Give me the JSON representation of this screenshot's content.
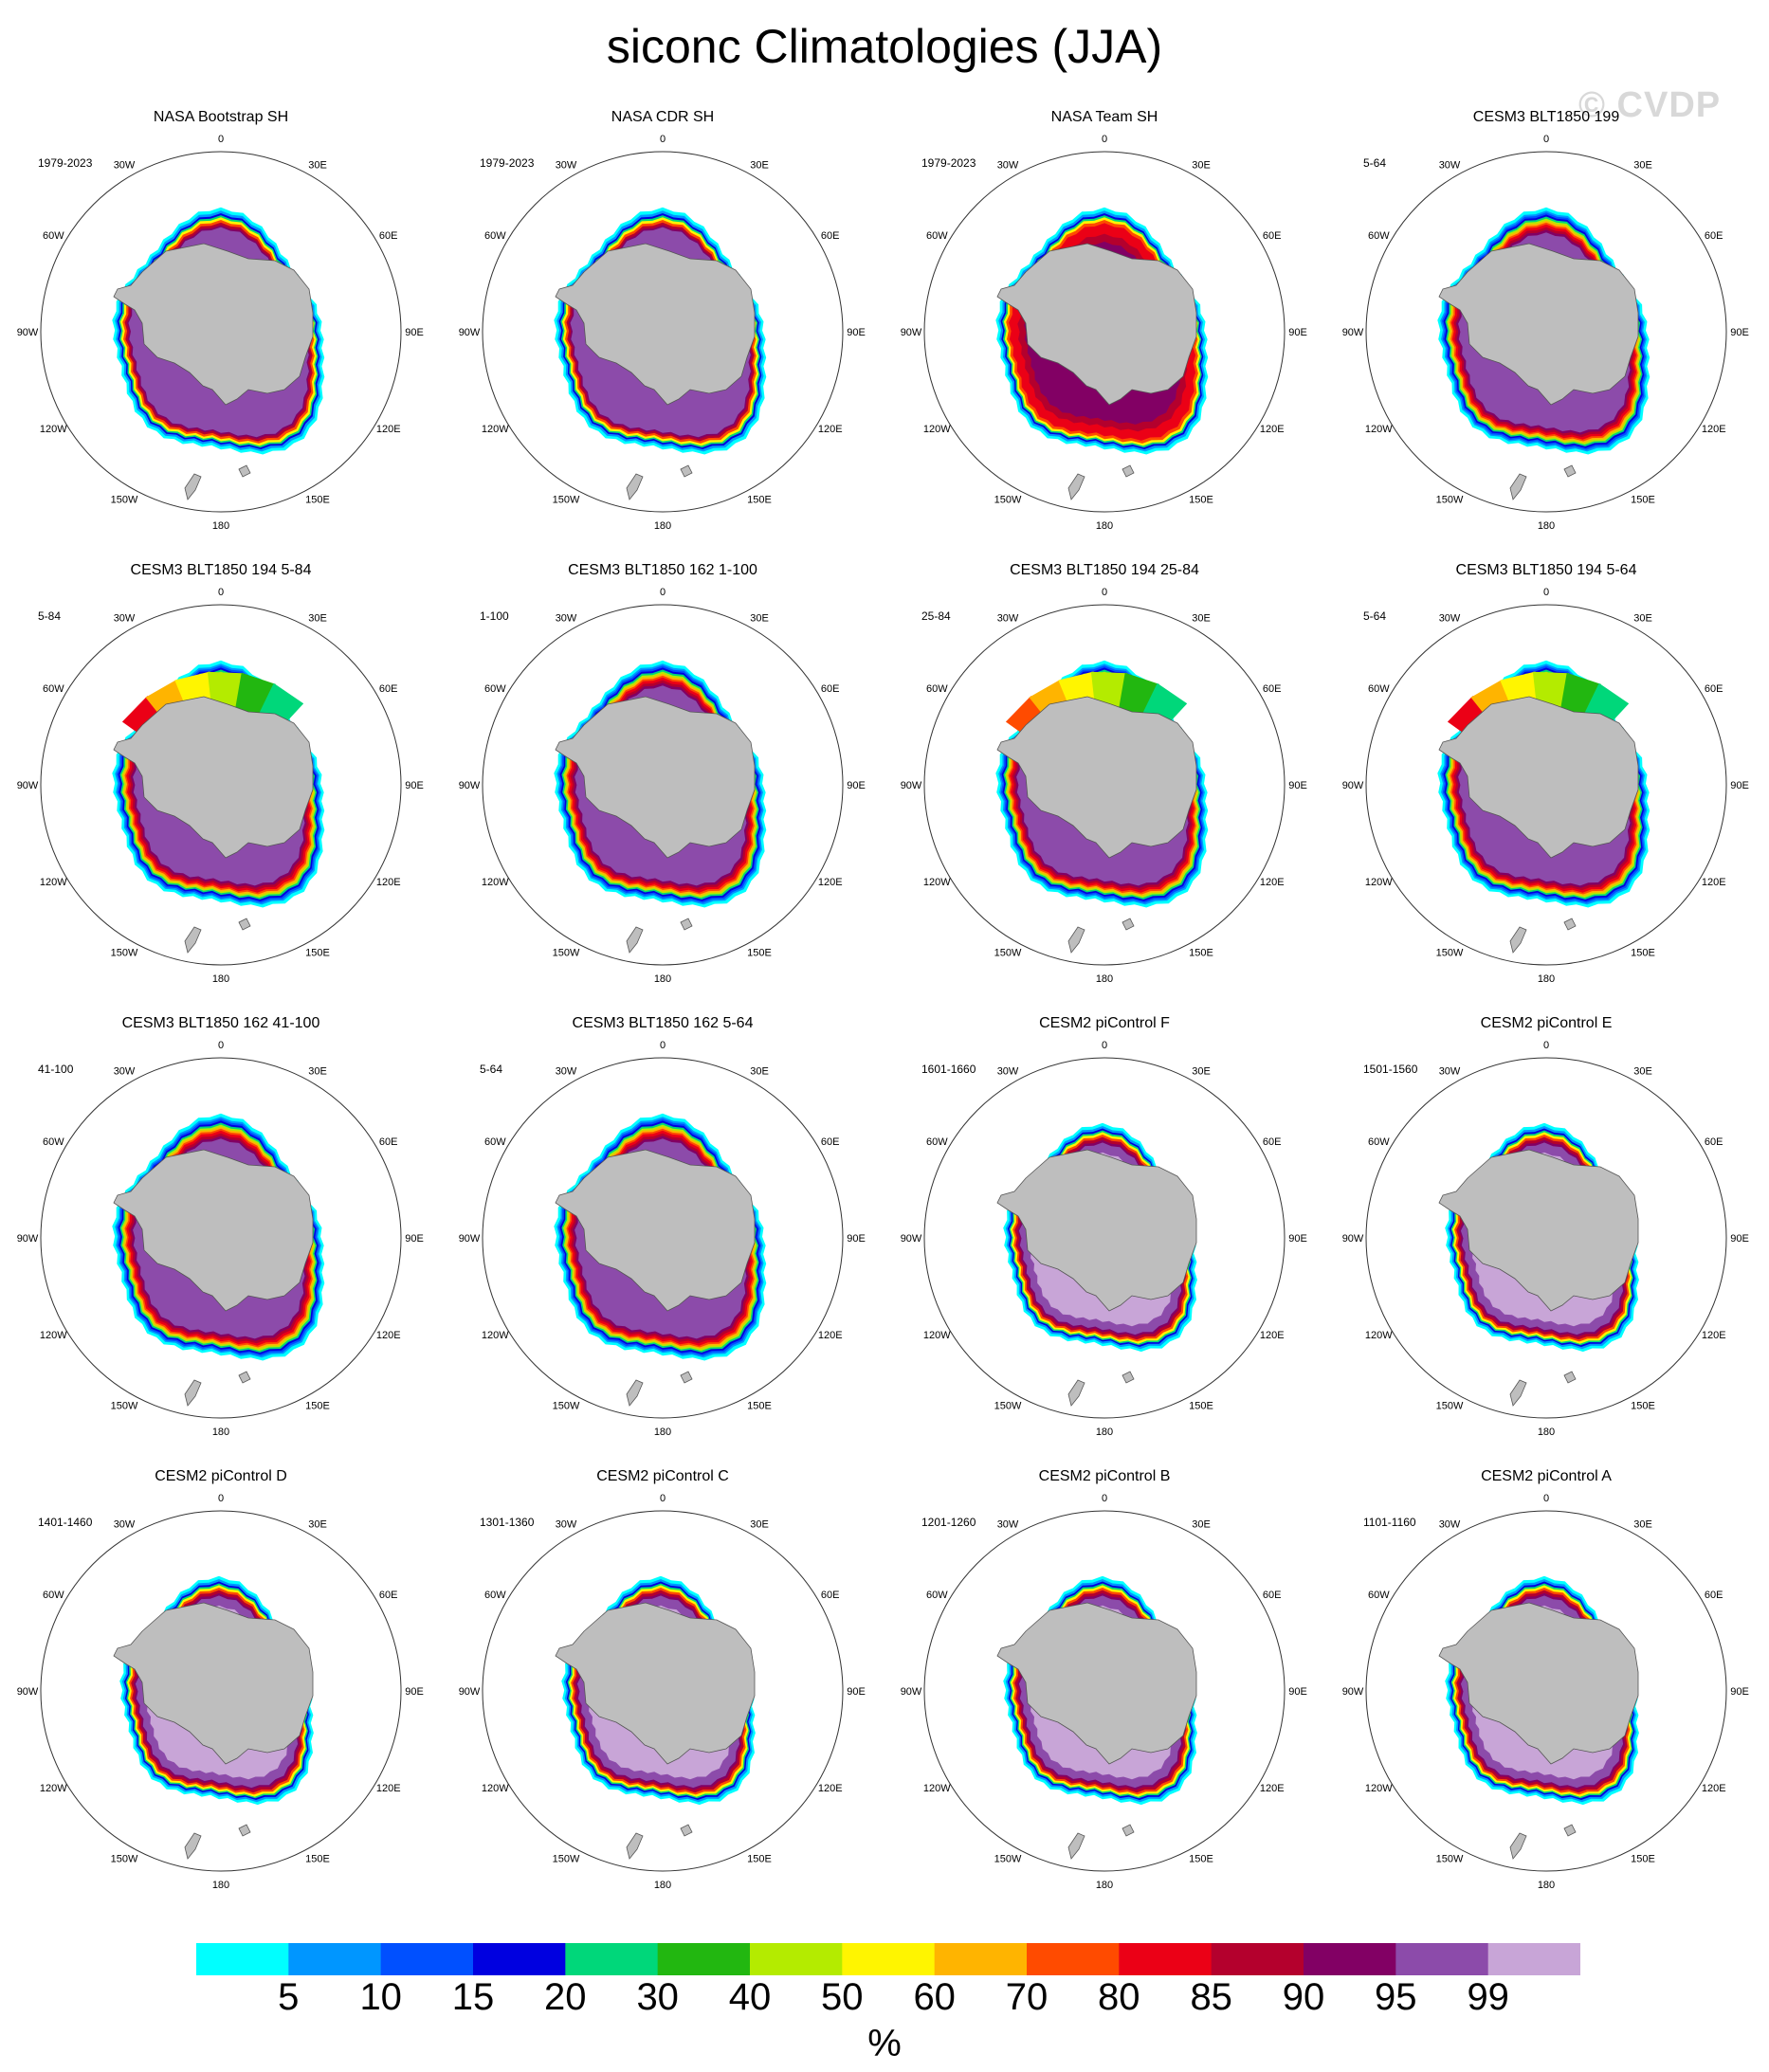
{
  "title": "siconc Climatologies (JJA)",
  "watermark": "© CVDP",
  "lon_labels": [
    "0",
    "30E",
    "60E",
    "90E",
    "120E",
    "150E",
    "180",
    "150W",
    "120W",
    "90W",
    "60W",
    "30W"
  ],
  "colors": {
    "land": "#bebebe",
    "c05": "#00ffff",
    "c10": "#0096ff",
    "c15": "#0050ff",
    "c20": "#0000e0",
    "c30": "#00d77a",
    "c40": "#22b710",
    "c50": "#b4eb00",
    "c60": "#fff500",
    "c70": "#ffb400",
    "c80": "#ff4b00",
    "c85": "#eb0016",
    "c90": "#b4002d",
    "c95": "#820064",
    "c99": "#8c4baa",
    "c100": "#c8a5d7"
  },
  "panels": [
    {
      "title": "NASA Bootstrap SH",
      "period": "1979-2023",
      "style": "obs"
    },
    {
      "title": "NASA CDR SH",
      "period": "1979-2023",
      "style": "obs"
    },
    {
      "title": "NASA Team SH",
      "period": "1979-2023",
      "style": "team"
    },
    {
      "title": "CESM3 BLT1850 199",
      "period": "5-64",
      "style": "cesm3"
    },
    {
      "title": "CESM3 BLT1850 194 5-84",
      "period": "5-84",
      "style": "cesm3y"
    },
    {
      "title": "CESM3 BLT1850 162 1-100",
      "period": "1-100",
      "style": "cesm3"
    },
    {
      "title": "CESM3 BLT1850 194 25-84",
      "period": "25-84",
      "style": "cesm3g"
    },
    {
      "title": "CESM3 BLT1850 194 5-64",
      "period": "5-64",
      "style": "cesm3y"
    },
    {
      "title": "CESM3 BLT1850 162 41-100",
      "period": "41-100",
      "style": "cesm3"
    },
    {
      "title": "CESM3 BLT1850 162 5-64",
      "period": "5-64",
      "style": "cesm3"
    },
    {
      "title": "CESM2 piControl F",
      "period": "1601-1660",
      "style": "cesm2"
    },
    {
      "title": "CESM2 piControl E",
      "period": "1501-1560",
      "style": "cesm2"
    },
    {
      "title": "CESM2 piControl D",
      "period": "1401-1460",
      "style": "cesm2"
    },
    {
      "title": "CESM2 piControl C",
      "period": "1301-1360",
      "style": "cesm2"
    },
    {
      "title": "CESM2 piControl B",
      "period": "1201-1260",
      "style": "cesm2"
    },
    {
      "title": "CESM2 piControl A",
      "period": "1101-1160",
      "style": "cesm2"
    }
  ],
  "colorbar": {
    "units": "%",
    "labels": [
      "5",
      "10",
      "15",
      "20",
      "30",
      "40",
      "50",
      "60",
      "70",
      "80",
      "85",
      "90",
      "95",
      "99"
    ],
    "colors": [
      "#00ffff",
      "#0096ff",
      "#0050ff",
      "#0000e0",
      "#00d77a",
      "#22b710",
      "#b4eb00",
      "#fff500",
      "#ffb400",
      "#ff4b00",
      "#eb0016",
      "#b4002d",
      "#820064",
      "#8c4baa",
      "#c8a5d7"
    ]
  }
}
